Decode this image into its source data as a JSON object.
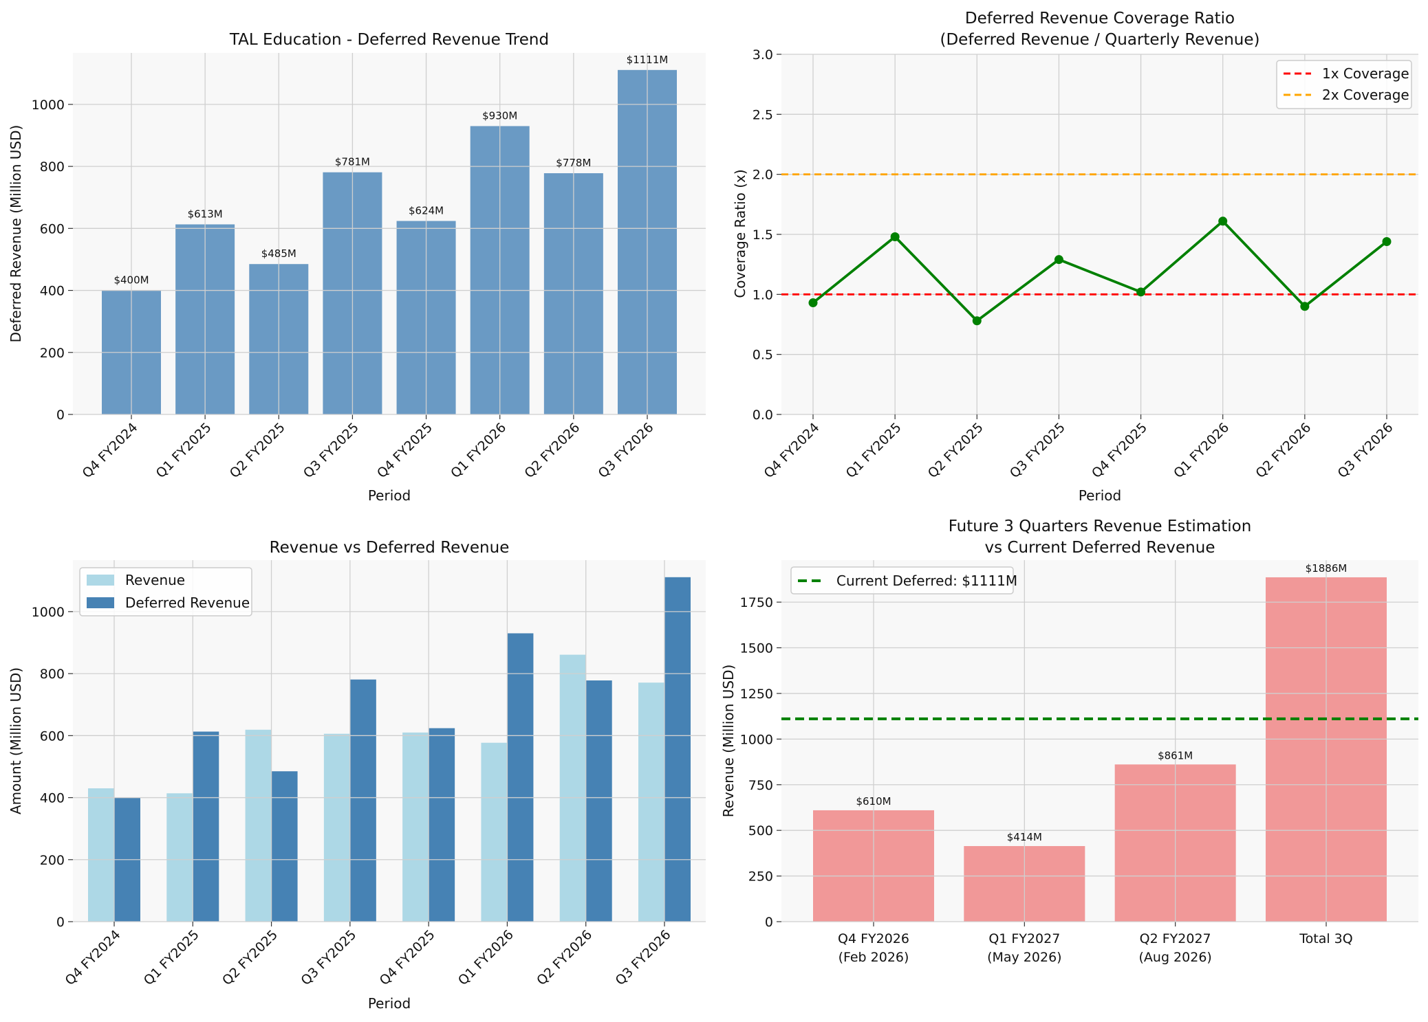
{
  "colors": {
    "panel_bg": "#f8f8f8",
    "grid": "#cfcfcf",
    "bar_blue": "#6a9ac4",
    "deferred_blue": "#4682b4",
    "revenue_light": "#add8e6",
    "coverage_line": "#008000",
    "line_1x": "#ff0000",
    "line_2x": "#ffa500",
    "salmon": "#f19898",
    "current_deferred": "#008000"
  },
  "chart_data": [
    {
      "type": "bar",
      "title": "TAL Education - Deferred Revenue Trend",
      "xlabel": "Period",
      "ylabel": "Deferred Revenue (Million USD)",
      "categories": [
        "Q4 FY2024",
        "Q1 FY2025",
        "Q2 FY2025",
        "Q3 FY2025",
        "Q4 FY2025",
        "Q1 FY2026",
        "Q2 FY2026",
        "Q3 FY2026"
      ],
      "values": [
        400,
        613,
        485,
        781,
        624,
        930,
        778,
        1111
      ],
      "data_labels": [
        "$400M",
        "$613M",
        "$485M",
        "$781M",
        "$624M",
        "$930M",
        "$778M",
        "$1111M"
      ],
      "ylim": [
        0,
        1166
      ],
      "yticks": [
        0,
        200,
        400,
        600,
        800,
        1000
      ],
      "ytick_labels": [
        "0",
        "200",
        "400",
        "600",
        "800",
        "1000"
      ],
      "grid": true
    },
    {
      "type": "line",
      "title": "Deferred Revenue Coverage Ratio",
      "subtitle": "(Deferred Revenue / Quarterly Revenue)",
      "xlabel": "Period",
      "ylabel": "Coverage Ratio (x)",
      "categories": [
        "Q4 FY2024",
        "Q1 FY2025",
        "Q2 FY2025",
        "Q3 FY2025",
        "Q4 FY2025",
        "Q1 FY2026",
        "Q2 FY2026",
        "Q3 FY2026"
      ],
      "values": [
        0.93,
        1.48,
        0.78,
        1.29,
        1.02,
        1.61,
        0.9,
        1.44
      ],
      "reference_lines": [
        {
          "name": "1x Coverage",
          "value": 1.0
        },
        {
          "name": "2x Coverage",
          "value": 2.0
        }
      ],
      "legend_position": "top-right",
      "ylim": [
        0,
        3.0
      ],
      "yticks": [
        0,
        0.5,
        1.0,
        1.5,
        2.0,
        2.5,
        3.0
      ],
      "ytick_labels": [
        "0.0",
        "0.5",
        "1.0",
        "1.5",
        "2.0",
        "2.5",
        "3.0"
      ],
      "grid": true
    },
    {
      "type": "bar",
      "title": "Revenue vs Deferred Revenue",
      "xlabel": "Period",
      "ylabel": "Amount (Million USD)",
      "categories": [
        "Q4 FY2024",
        "Q1 FY2025",
        "Q2 FY2025",
        "Q3 FY2025",
        "Q4 FY2025",
        "Q1 FY2026",
        "Q2 FY2026",
        "Q3 FY2026"
      ],
      "series": [
        {
          "name": "Revenue",
          "values": [
            430,
            414,
            619,
            606,
            610,
            577,
            861,
            771
          ]
        },
        {
          "name": "Deferred Revenue",
          "values": [
            400,
            613,
            485,
            781,
            624,
            930,
            778,
            1111
          ]
        }
      ],
      "legend_position": "top-left",
      "ylim": [
        0,
        1166
      ],
      "yticks": [
        0,
        200,
        400,
        600,
        800,
        1000
      ],
      "ytick_labels": [
        "0",
        "200",
        "400",
        "600",
        "800",
        "1000"
      ],
      "grid": true
    },
    {
      "type": "bar",
      "title": "Future 3 Quarters Revenue Estimation",
      "subtitle": "vs Current Deferred Revenue",
      "xlabel": "",
      "ylabel": "Revenue (Million USD)",
      "categories": [
        {
          "line1": "Q4 FY2026",
          "line2": "(Feb 2026)"
        },
        {
          "line1": "Q1 FY2027",
          "line2": "(May 2026)"
        },
        {
          "line1": "Q2 FY2027",
          "line2": "(Aug 2026)"
        },
        {
          "line1": "Total 3Q",
          "line2": ""
        }
      ],
      "values": [
        610,
        414,
        861,
        1886
      ],
      "data_labels": [
        "$610M",
        "$414M",
        "$861M",
        "$1886M"
      ],
      "reference_lines": [
        {
          "name": "Current Deferred: $1111M",
          "value": 1111
        }
      ],
      "legend_position": "top-left",
      "ylim": [
        0,
        1980
      ],
      "yticks": [
        0,
        250,
        500,
        750,
        1000,
        1250,
        1500,
        1750
      ],
      "ytick_labels": [
        "0",
        "250",
        "500",
        "750",
        "1000",
        "1250",
        "1500",
        "1750"
      ],
      "grid": true
    }
  ]
}
